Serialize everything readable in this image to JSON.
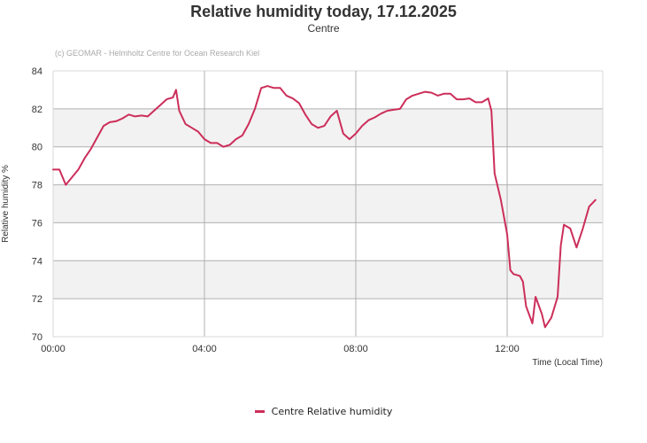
{
  "header": {
    "title": "Relative humidity today, 17.12.2025",
    "subtitle": "Centre",
    "credit": "(c) GEOMAR - Helmholtz Centre for Ocean Research Kiel"
  },
  "axes": {
    "ylabel": "Relative humidity %",
    "xlabel": "Time (Local Time)",
    "yticks": [
      "84",
      "82",
      "80",
      "78",
      "76",
      "74",
      "72",
      "70"
    ],
    "xticks": [
      "00:00",
      "04:00",
      "08:00",
      "12:00"
    ]
  },
  "legend": {
    "label": "Centre Relative humidity",
    "color": "#cc2e5a"
  },
  "colors": {
    "series": "#cc2e5a",
    "band": "#f2f2f2",
    "grid": "#b0b0b0",
    "axis": "#d8d8d8",
    "title": "#333333"
  },
  "chart_data": {
    "type": "line",
    "title": "Relative humidity today, 17.12.2025",
    "subtitle": "Centre",
    "xlabel": "Time (Local Time)",
    "ylabel": "Relative humidity %",
    "ylim": [
      70,
      84
    ],
    "xlim": [
      "00:00",
      "14:32"
    ],
    "grid": true,
    "legend_position": "bottom",
    "series": [
      {
        "name": "Centre Relative humidity",
        "color": "#cc2e5a",
        "x": [
          "00:00",
          "00:10",
          "00:20",
          "00:30",
          "00:40",
          "00:50",
          "01:00",
          "01:10",
          "01:20",
          "01:30",
          "01:40",
          "01:50",
          "02:00",
          "02:10",
          "02:20",
          "02:30",
          "02:40",
          "02:50",
          "03:00",
          "03:10",
          "03:15",
          "03:20",
          "03:30",
          "03:40",
          "03:50",
          "04:00",
          "04:10",
          "04:20",
          "04:30",
          "04:40",
          "04:50",
          "05:00",
          "05:10",
          "05:20",
          "05:30",
          "05:40",
          "05:50",
          "06:00",
          "06:10",
          "06:20",
          "06:30",
          "06:40",
          "06:50",
          "07:00",
          "07:10",
          "07:20",
          "07:30",
          "07:40",
          "07:50",
          "08:00",
          "08:10",
          "08:20",
          "08:30",
          "08:40",
          "08:50",
          "09:00",
          "09:10",
          "09:20",
          "09:30",
          "09:40",
          "09:50",
          "10:00",
          "10:10",
          "10:20",
          "10:30",
          "10:40",
          "10:50",
          "11:00",
          "11:10",
          "11:20",
          "11:30",
          "11:35",
          "11:40",
          "11:50",
          "12:00",
          "12:05",
          "12:10",
          "12:20",
          "12:25",
          "12:30",
          "12:40",
          "12:45",
          "12:55",
          "13:00",
          "13:10",
          "13:20",
          "13:25",
          "13:30",
          "13:40",
          "13:50",
          "14:00",
          "14:10",
          "14:20"
        ],
        "values": [
          78.8,
          78.8,
          78.0,
          78.4,
          78.8,
          79.4,
          79.9,
          80.5,
          81.1,
          81.3,
          81.35,
          81.5,
          81.7,
          81.6,
          81.65,
          81.6,
          81.9,
          82.2,
          82.5,
          82.6,
          83.0,
          81.9,
          81.2,
          81.0,
          80.8,
          80.4,
          80.2,
          80.2,
          80.0,
          80.1,
          80.4,
          80.6,
          81.2,
          82.0,
          83.1,
          83.2,
          83.1,
          83.1,
          82.7,
          82.55,
          82.3,
          81.7,
          81.2,
          81.0,
          81.1,
          81.6,
          81.9,
          80.7,
          80.4,
          80.7,
          81.1,
          81.4,
          81.55,
          81.75,
          81.9,
          81.95,
          82.0,
          82.5,
          82.7,
          82.8,
          82.9,
          82.85,
          82.7,
          82.8,
          82.8,
          82.5,
          82.5,
          82.55,
          82.35,
          82.35,
          82.55,
          81.9,
          78.6,
          77.2,
          75.4,
          73.5,
          73.3,
          73.2,
          72.9,
          71.6,
          70.7,
          72.1,
          71.2,
          70.5,
          71.0,
          72.1,
          74.8,
          75.9,
          75.7,
          74.7,
          75.7,
          76.85,
          77.2
        ]
      }
    ]
  }
}
